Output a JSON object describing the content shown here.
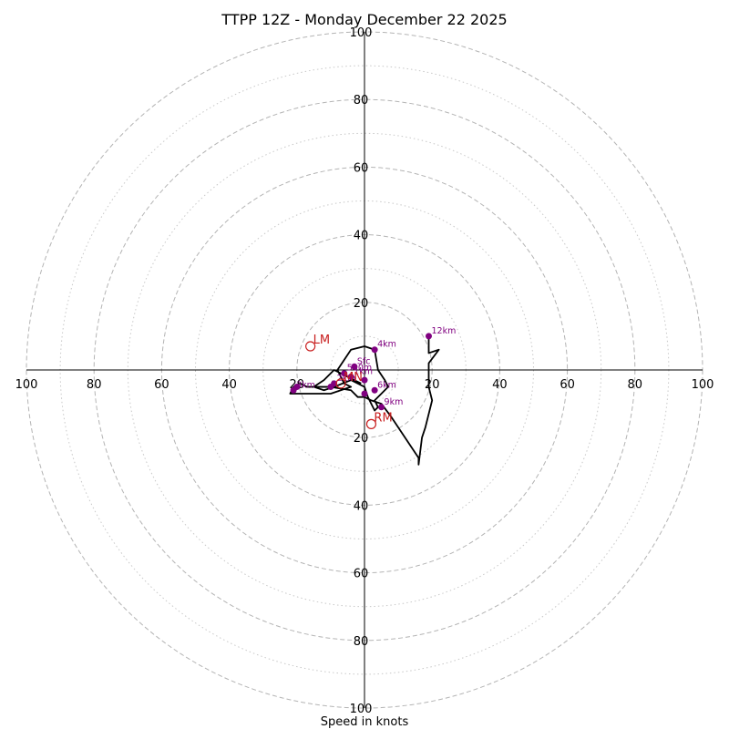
{
  "chart_data": {
    "type": "hodograph",
    "title": "TTPP 12Z - Monday December 22 2025",
    "xlabel": "Speed in knots",
    "range": [
      -100,
      100
    ],
    "rings_major": [
      20,
      40,
      60,
      80,
      100
    ],
    "rings_minor": [
      10,
      30,
      50,
      70,
      90
    ],
    "x_tick_labels": [
      "100",
      "80",
      "60",
      "40",
      "20",
      "20",
      "40",
      "60",
      "80",
      "100"
    ],
    "y_tick_labels": [
      "100",
      "80",
      "60",
      "40",
      "20",
      "20",
      "40",
      "60",
      "80",
      "100"
    ],
    "line_color": "#000000",
    "point_color": "#800080",
    "motion_color": "#c81e1e",
    "trace": [
      [
        -1,
        -4
      ],
      [
        -3,
        -3
      ],
      [
        -5,
        -2
      ],
      [
        -7,
        -1
      ],
      [
        -9,
        0
      ],
      [
        -12,
        -3
      ],
      [
        -15,
        -5
      ],
      [
        -12,
        -6
      ],
      [
        -9,
        -5
      ],
      [
        -4,
        -3
      ],
      [
        0,
        -5
      ],
      [
        1,
        -8
      ],
      [
        2,
        -10
      ],
      [
        3,
        -12
      ],
      [
        4,
        -11
      ],
      [
        3,
        -9
      ],
      [
        5,
        -7
      ],
      [
        7,
        -5
      ],
      [
        6,
        -3
      ],
      [
        4,
        0
      ],
      [
        3,
        6
      ],
      [
        0,
        7
      ],
      [
        -4,
        6
      ],
      [
        -6,
        3
      ],
      [
        -8,
        0
      ],
      [
        -6,
        -4
      ],
      [
        -4,
        -5
      ],
      [
        -10,
        -7
      ],
      [
        -15,
        -7
      ],
      [
        -22,
        -7
      ],
      [
        -21,
        -5
      ],
      [
        -19,
        -4
      ],
      [
        -17,
        -5
      ],
      [
        -10,
        -5
      ],
      [
        -4,
        -6
      ],
      [
        -2,
        -8
      ],
      [
        0,
        -8
      ],
      [
        2,
        -9
      ],
      [
        5,
        -10
      ],
      [
        8,
        -14
      ],
      [
        10,
        -17
      ],
      [
        12,
        -20
      ],
      [
        14,
        -23
      ],
      [
        16,
        -26
      ],
      [
        16,
        -28
      ],
      [
        17,
        -20
      ],
      [
        18,
        -17
      ],
      [
        20,
        -9
      ],
      [
        19,
        -5
      ],
      [
        19,
        2
      ],
      [
        22,
        6
      ],
      [
        19,
        5
      ],
      [
        19,
        10
      ]
    ],
    "points": [
      {
        "label": "Sfc",
        "x": -3,
        "y": 1
      },
      {
        "label": "500m",
        "x": -6,
        "y": -1
      },
      {
        "label": "1km",
        "x": -4,
        "y": -2
      },
      {
        "label": "2km",
        "x": -9,
        "y": -4
      },
      {
        "label": "3km",
        "x": -21,
        "y": -6
      },
      {
        "label": "4km",
        "x": 3,
        "y": 6
      },
      {
        "label": "6km",
        "x": 3,
        "y": -6
      },
      {
        "label": "9km",
        "x": 5,
        "y": -11
      },
      {
        "label": "12km",
        "x": 19,
        "y": 10
      },
      {
        "label": "",
        "x": -10,
        "y": -5
      },
      {
        "label": "",
        "x": -20,
        "y": -5
      },
      {
        "label": "",
        "x": 0,
        "y": -7
      },
      {
        "label": "",
        "x": 0,
        "y": -3
      }
    ],
    "storm_motion": [
      {
        "label": "LM",
        "x": -16,
        "y": 7
      },
      {
        "label": "RM",
        "x": 2,
        "y": -16
      },
      {
        "label": "MN",
        "x": -7,
        "y": -4
      }
    ]
  }
}
